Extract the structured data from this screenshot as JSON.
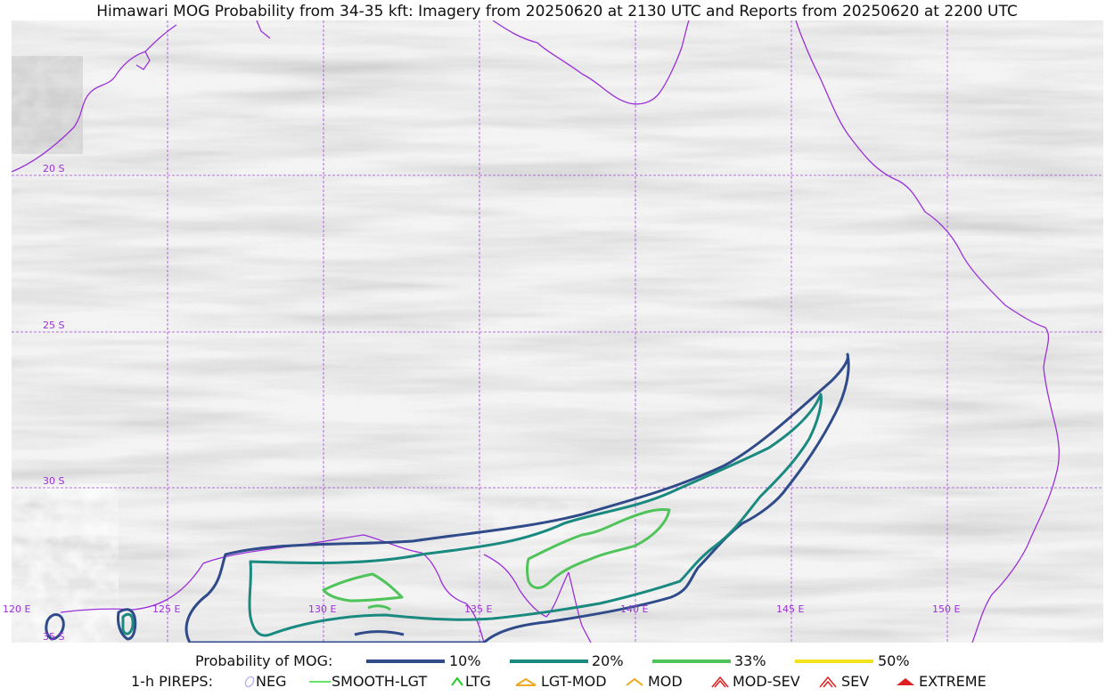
{
  "title": "Himawari MOG Probability from 34-35 kft: Imagery from 20250620 at 2130 UTC and Reports from 20250620 at 2200 UTC",
  "map": {
    "grid_color": "#9b30d9",
    "coast_color": "#9b30d9",
    "lat_labels": [
      "20 S",
      "25 S",
      "30 S",
      "35 S"
    ],
    "lon_labels": [
      "120 E",
      "125 E",
      "130 E",
      "135 E",
      "140 E",
      "145 E",
      "150 E"
    ]
  },
  "legend_prob": {
    "label": "Probability of MOG:",
    "items": [
      {
        "label": "10%",
        "color": "#2f4b8a"
      },
      {
        "label": "20%",
        "color": "#1a8a80"
      },
      {
        "label": "33%",
        "color": "#4fc45a"
      },
      {
        "label": "50%",
        "color": "#f2e21b"
      }
    ]
  },
  "legend_pireps": {
    "label": "1-h PIREPS:",
    "items": [
      {
        "label": "NEG",
        "icon": "neg-icon",
        "color": "#b8b8f0"
      },
      {
        "label": "SMOOTH-LGT",
        "icon": "smooth-lgt-icon",
        "color": "#33dd33"
      },
      {
        "label": "LTG",
        "icon": "ltg-icon",
        "color": "#22cc22"
      },
      {
        "label": "LGT-MOD",
        "icon": "lgt-mod-icon",
        "color": "#f0a81e"
      },
      {
        "label": "MOD",
        "icon": "mod-icon",
        "color": "#f0a81e"
      },
      {
        "label": "MOD-SEV",
        "icon": "mod-sev-icon",
        "color": "#e02020"
      },
      {
        "label": "SEV",
        "icon": "sev-icon",
        "color": "#e02020"
      },
      {
        "label": "EXTREME",
        "icon": "extreme-icon",
        "color": "#e02020"
      }
    ]
  }
}
